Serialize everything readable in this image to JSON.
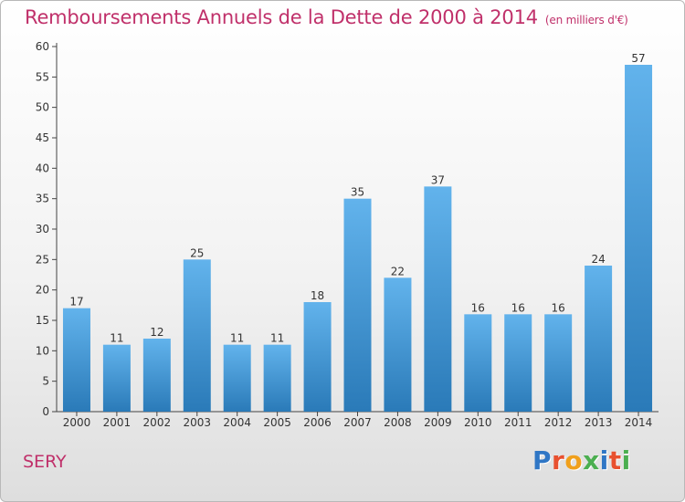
{
  "title": "Remboursements Annuels de la Dette de 2000 à 2014",
  "unit_note": "(en milliers d'€)",
  "commune": "SERY",
  "logo": {
    "text": "Proxiti",
    "letter_colors": [
      "#2f76c5",
      "#e8502f",
      "#f0a01c",
      "#4caf50",
      "#2f76c5",
      "#e8502f",
      "#4caf50"
    ]
  },
  "colors": {
    "title": "#c0306a",
    "bar_top": "#62b3ec",
    "bar_bottom": "#2a7ab8"
  },
  "chart_data": {
    "type": "bar",
    "categories": [
      "2000",
      "2001",
      "2002",
      "2003",
      "2004",
      "2005",
      "2006",
      "2007",
      "2008",
      "2009",
      "2010",
      "2011",
      "2012",
      "2013",
      "2014"
    ],
    "values": [
      17,
      11,
      12,
      25,
      11,
      11,
      18,
      35,
      22,
      37,
      16,
      16,
      16,
      24,
      57
    ],
    "ylim": [
      0,
      60
    ],
    "yticks": [
      0,
      5,
      10,
      15,
      20,
      25,
      30,
      35,
      40,
      45,
      50,
      55,
      60
    ],
    "grid": false,
    "data_labels": true
  }
}
